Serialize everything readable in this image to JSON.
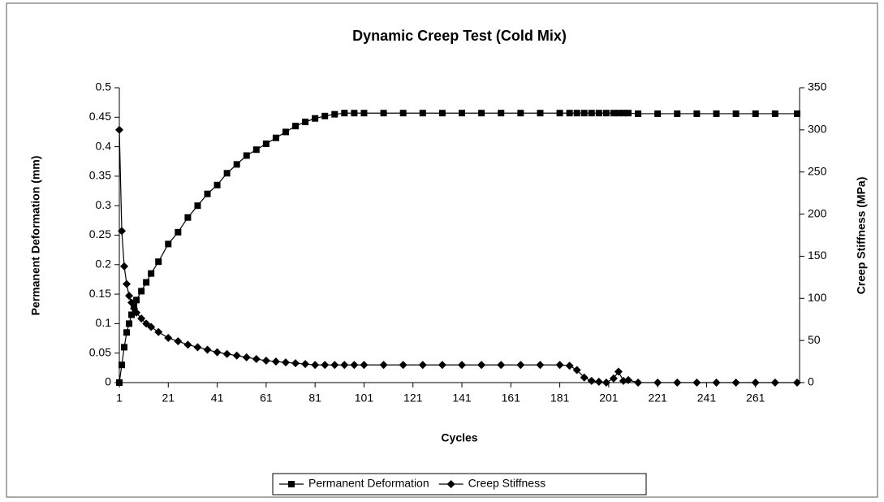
{
  "chart_data": {
    "type": "line",
    "title": "Dynamic Creep Test (Cold Mix)",
    "x_label": "Cycles",
    "y_label": "Permanent Deformation (mm)",
    "y2_label": "Creep Stiffness (MPa)",
    "x": [
      1,
      2,
      3,
      4,
      5,
      6,
      7,
      8,
      10,
      12,
      14,
      17,
      21,
      25,
      29,
      33,
      37,
      41,
      45,
      49,
      53,
      57,
      61,
      65,
      69,
      73,
      77,
      81,
      85,
      89,
      93,
      97,
      101,
      109,
      117,
      125,
      133,
      141,
      149,
      157,
      165,
      173,
      181,
      185,
      188,
      191,
      194,
      197,
      200,
      203,
      205,
      207,
      209,
      213,
      221,
      229,
      237,
      245,
      253,
      261,
      269,
      278
    ],
    "xlim": [
      1,
      279
    ],
    "xticks": [
      1,
      21,
      41,
      61,
      81,
      101,
      121,
      141,
      161,
      181,
      201,
      221,
      241,
      261
    ],
    "ylim": [
      0,
      0.5
    ],
    "yticks": [
      0,
      0.05,
      0.1,
      0.15,
      0.2,
      0.25,
      0.3,
      0.35,
      0.4,
      0.45,
      0.5
    ],
    "y2lim": [
      0,
      350
    ],
    "y2ticks": [
      0,
      50,
      100,
      150,
      200,
      250,
      300,
      350
    ],
    "grid": false,
    "legend": "bottom",
    "series": [
      {
        "name": "Permanent Deformation",
        "color": "#000000",
        "marker": "square",
        "values": [
          0,
          0.03,
          0.06,
          0.085,
          0.1,
          0.115,
          0.13,
          0.14,
          0.155,
          0.17,
          0.185,
          0.205,
          0.235,
          0.255,
          0.28,
          0.3,
          0.32,
          0.335,
          0.355,
          0.37,
          0.385,
          0.395,
          0.405,
          0.415,
          0.425,
          0.435,
          0.442,
          0.448,
          0.452,
          0.455,
          0.457,
          0.457,
          0.457,
          0.457,
          0.457,
          0.457,
          0.457,
          0.457,
          0.457,
          0.457,
          0.457,
          0.457,
          0.457,
          0.457,
          0.457,
          0.457,
          0.457,
          0.457,
          0.457,
          0.457,
          0.457,
          0.457,
          0.457,
          0.456,
          0.456,
          0.456,
          0.456,
          0.456,
          0.456,
          0.456,
          0.456,
          0.456
        ]
      },
      {
        "name": "Creep Stiffness",
        "color": "#000000",
        "marker": "diamond",
        "axis": "y2",
        "values": [
          300,
          180,
          138,
          117,
          103,
          95,
          88,
          83,
          76,
          70,
          66,
          60,
          53,
          49,
          45,
          42,
          39,
          36,
          34,
          32,
          30,
          28,
          26,
          25,
          24,
          23,
          22,
          21,
          21,
          21,
          21,
          21,
          21,
          21,
          21,
          21,
          21,
          21,
          21,
          21,
          21,
          21,
          21,
          20,
          15,
          6,
          2,
          1,
          0,
          5,
          13,
          2,
          3,
          0,
          0,
          0,
          0,
          0,
          0,
          0,
          0,
          0
        ]
      }
    ]
  }
}
